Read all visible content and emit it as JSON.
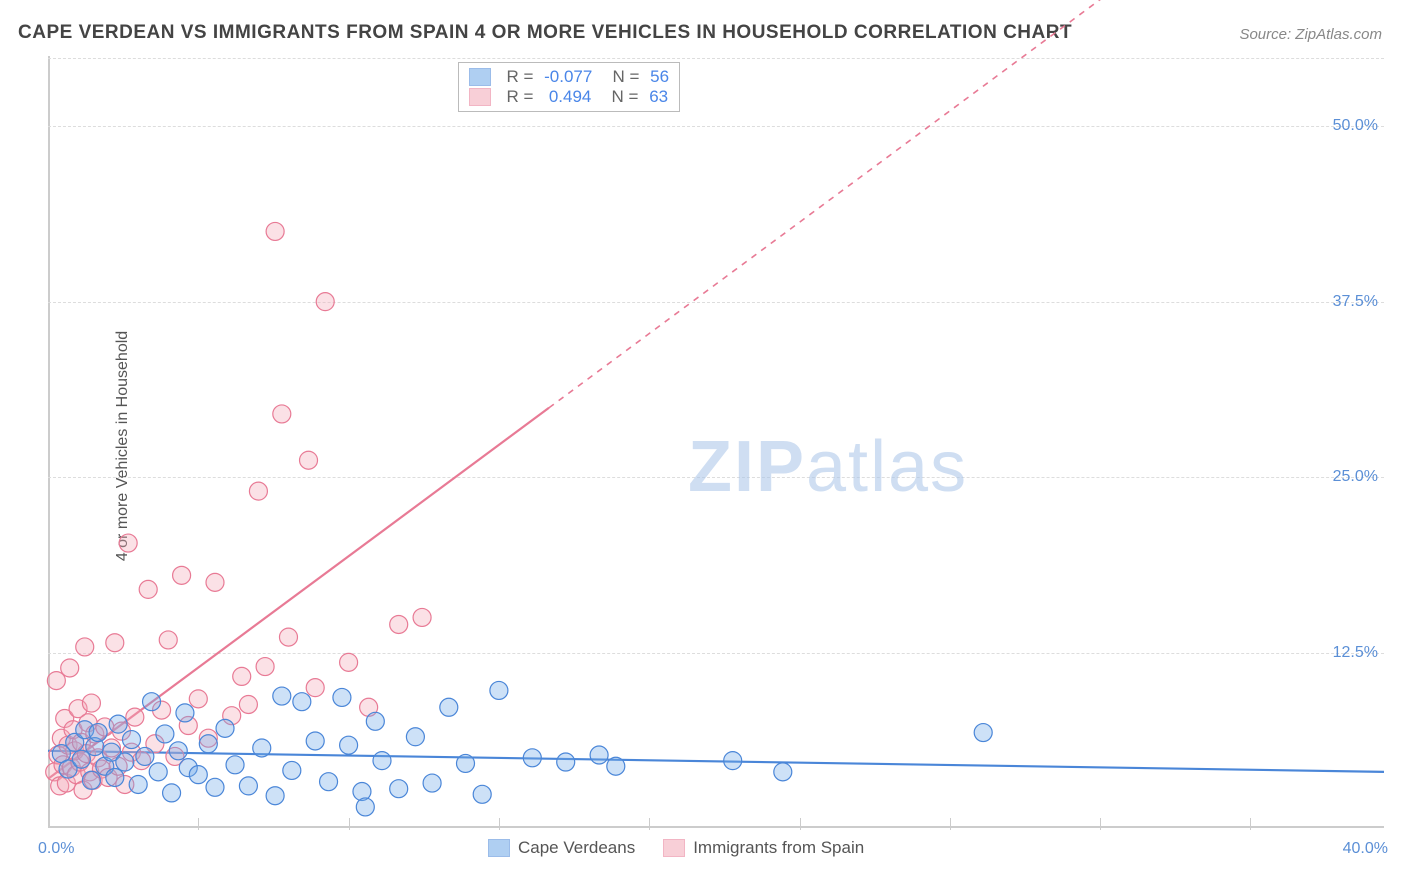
{
  "title": "CAPE VERDEAN VS IMMIGRANTS FROM SPAIN 4 OR MORE VEHICLES IN HOUSEHOLD CORRELATION CHART",
  "source": "Source: ZipAtlas.com",
  "ylabel": "4 or more Vehicles in Household",
  "watermark": {
    "bold": "ZIP",
    "rest": "atlas"
  },
  "chart": {
    "type": "scatter",
    "xlim": [
      0,
      40
    ],
    "ylim": [
      0,
      55
    ],
    "xtick_positions": [
      4.5,
      9,
      13.5,
      18,
      22.5,
      27,
      31.5,
      36
    ],
    "ytick_labels": [
      {
        "value": 12.5,
        "label": "12.5%"
      },
      {
        "value": 25.0,
        "label": "25.0%"
      },
      {
        "value": 37.5,
        "label": "37.5%"
      },
      {
        "value": 50.0,
        "label": "50.0%"
      }
    ],
    "x_min_label": "0.0%",
    "x_max_label": "40.0%",
    "grid_color": "#dddddd",
    "axis_color": "#cccccc",
    "background_color": "#ffffff",
    "ytick_color": "#5b8fd6",
    "xlabel_color": "#5b8fd6",
    "stats_text_color": "#666666",
    "stats_value_color": "#4a86e8",
    "marker_radius": 9,
    "marker_stroke_width": 1.2,
    "marker_fill_opacity": 0.35
  },
  "series": {
    "blue": {
      "label": "Cape Verdeans",
      "color": "#6fa8e8",
      "stroke": "#4a86d8",
      "R": "-0.077",
      "N": "56",
      "trend": {
        "x1": 0,
        "y1": 5.5,
        "x2": 40,
        "y2": 4.0,
        "solid_until_x": 40
      },
      "points": [
        [
          0.4,
          5.3
        ],
        [
          0.6,
          4.2
        ],
        [
          0.8,
          6.1
        ],
        [
          1.0,
          4.9
        ],
        [
          1.1,
          7.0
        ],
        [
          1.3,
          3.4
        ],
        [
          1.4,
          5.8
        ],
        [
          1.5,
          6.8
        ],
        [
          1.7,
          4.4
        ],
        [
          1.9,
          5.4
        ],
        [
          2.0,
          3.6
        ],
        [
          2.1,
          7.4
        ],
        [
          2.3,
          4.7
        ],
        [
          2.5,
          6.3
        ],
        [
          2.7,
          3.1
        ],
        [
          2.9,
          5.1
        ],
        [
          3.1,
          9.0
        ],
        [
          3.3,
          4.0
        ],
        [
          3.5,
          6.7
        ],
        [
          3.7,
          2.5
        ],
        [
          3.9,
          5.5
        ],
        [
          4.1,
          8.2
        ],
        [
          4.2,
          4.3
        ],
        [
          4.5,
          3.8
        ],
        [
          4.8,
          6.0
        ],
        [
          5.0,
          2.9
        ],
        [
          5.3,
          7.1
        ],
        [
          5.6,
          4.5
        ],
        [
          6.0,
          3.0
        ],
        [
          6.4,
          5.7
        ],
        [
          6.8,
          2.3
        ],
        [
          7.0,
          9.4
        ],
        [
          7.3,
          4.1
        ],
        [
          7.6,
          9.0
        ],
        [
          8.0,
          6.2
        ],
        [
          8.4,
          3.3
        ],
        [
          8.8,
          9.3
        ],
        [
          9.0,
          5.9
        ],
        [
          9.4,
          2.6
        ],
        [
          9.8,
          7.6
        ],
        [
          10.0,
          4.8
        ],
        [
          10.5,
          2.8
        ],
        [
          11.0,
          6.5
        ],
        [
          11.5,
          3.2
        ],
        [
          12.0,
          8.6
        ],
        [
          12.5,
          4.6
        ],
        [
          13.0,
          2.4
        ],
        [
          13.5,
          9.8
        ],
        [
          14.5,
          5.0
        ],
        [
          15.5,
          4.7
        ],
        [
          16.5,
          5.2
        ],
        [
          17.0,
          4.4
        ],
        [
          20.5,
          4.8
        ],
        [
          22.0,
          4.0
        ],
        [
          28.0,
          6.8
        ],
        [
          9.5,
          1.5
        ]
      ]
    },
    "pink": {
      "label": "Immigrants from Spain",
      "color": "#f4a8b8",
      "stroke": "#e87a95",
      "R": "0.494",
      "N": "63",
      "trend": {
        "x1": 0,
        "y1": 3.5,
        "x2": 40,
        "y2": 74,
        "solid_until_x": 15
      },
      "points": [
        [
          0.2,
          4.0
        ],
        [
          0.25,
          10.5
        ],
        [
          0.3,
          5.2
        ],
        [
          0.35,
          3.0
        ],
        [
          0.4,
          6.4
        ],
        [
          0.45,
          4.5
        ],
        [
          0.5,
          7.8
        ],
        [
          0.55,
          3.2
        ],
        [
          0.6,
          5.9
        ],
        [
          0.65,
          11.4
        ],
        [
          0.7,
          4.3
        ],
        [
          0.75,
          7.0
        ],
        [
          0.8,
          5.5
        ],
        [
          0.85,
          3.8
        ],
        [
          0.9,
          8.5
        ],
        [
          0.95,
          4.7
        ],
        [
          1.0,
          6.1
        ],
        [
          1.05,
          2.7
        ],
        [
          1.1,
          12.9
        ],
        [
          1.15,
          5.3
        ],
        [
          1.2,
          7.5
        ],
        [
          1.25,
          4.0
        ],
        [
          1.3,
          8.9
        ],
        [
          1.35,
          3.4
        ],
        [
          1.4,
          6.7
        ],
        [
          1.5,
          5.0
        ],
        [
          1.6,
          4.2
        ],
        [
          1.7,
          7.2
        ],
        [
          1.8,
          3.6
        ],
        [
          1.9,
          5.7
        ],
        [
          2.0,
          13.2
        ],
        [
          2.1,
          4.4
        ],
        [
          2.2,
          6.9
        ],
        [
          2.3,
          3.1
        ],
        [
          2.4,
          20.3
        ],
        [
          2.5,
          5.4
        ],
        [
          2.6,
          7.9
        ],
        [
          2.8,
          4.8
        ],
        [
          3.0,
          17.0
        ],
        [
          3.2,
          6.0
        ],
        [
          3.4,
          8.4
        ],
        [
          3.6,
          13.4
        ],
        [
          3.8,
          5.1
        ],
        [
          4.0,
          18.0
        ],
        [
          4.2,
          7.3
        ],
        [
          4.5,
          9.2
        ],
        [
          4.8,
          6.4
        ],
        [
          5.0,
          17.5
        ],
        [
          5.5,
          8.0
        ],
        [
          5.8,
          10.8
        ],
        [
          6.0,
          8.8
        ],
        [
          6.3,
          24.0
        ],
        [
          6.5,
          11.5
        ],
        [
          6.8,
          42.5
        ],
        [
          7.0,
          29.5
        ],
        [
          7.2,
          13.6
        ],
        [
          7.8,
          26.2
        ],
        [
          8.0,
          10.0
        ],
        [
          8.3,
          37.5
        ],
        [
          9.0,
          11.8
        ],
        [
          9.6,
          8.6
        ],
        [
          10.5,
          14.5
        ],
        [
          11.2,
          15.0
        ]
      ]
    }
  },
  "stats_box": {
    "rows": [
      {
        "swatch": "blue",
        "R_label": "R =",
        "R_value": "-0.077",
        "N_label": "N =",
        "N_value": "56"
      },
      {
        "swatch": "pink",
        "R_label": "R =",
        "R_value": " 0.494",
        "N_label": "N =",
        "N_value": "63"
      }
    ]
  },
  "legend": {
    "items": [
      {
        "swatch": "blue",
        "label": "Cape Verdeans"
      },
      {
        "swatch": "pink",
        "label": "Immigrants from Spain"
      }
    ]
  }
}
